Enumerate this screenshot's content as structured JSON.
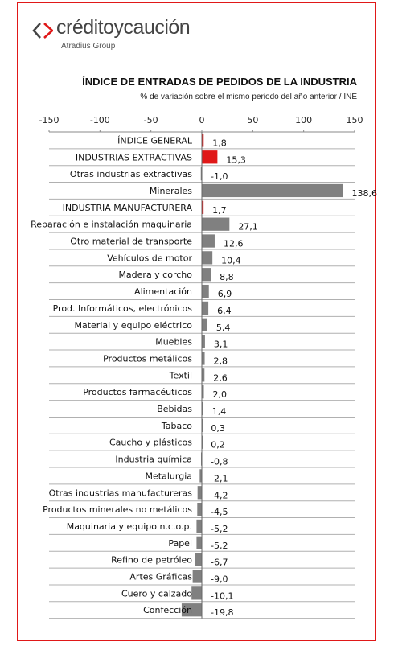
{
  "brand": {
    "name": "créditoycaución",
    "subtitle": "Atradius Group",
    "logo_color": "#e01818",
    "text_color": "#444444"
  },
  "frame_color": "#e01818",
  "chart_data": {
    "type": "bar",
    "orientation": "horizontal",
    "title": "ÍNDICE DE ENTRADAS DE PEDIDOS DE LA INDUSTRIA",
    "subtitle": "% de variación sobre el mismo periodo del año anterior / INE",
    "xlim": [
      -150,
      150
    ],
    "xticks": [
      -150,
      -100,
      -50,
      0,
      50,
      100,
      150
    ],
    "grid": "horizontal",
    "legend": "none",
    "categories": [
      "ÍNDICE GENERAL",
      "INDUSTRIAS EXTRACTIVAS",
      "Otras industrias extractivas",
      "Minerales",
      "INDUSTRIA MANUFACTURERA",
      "Reparación e instalación maquinaria",
      "Otro material de transporte",
      "Vehículos de motor",
      "Madera y corcho",
      "Alimentación",
      "Prod. Informáticos, electrónicos",
      "Material y equipo eléctrico",
      "Muebles",
      "Productos metálicos",
      "Textil",
      "Productos farmacéuticos",
      "Bebidas",
      "Tabaco",
      "Caucho y plásticos",
      "Industria química",
      "Metalurgia",
      "Otras industrias manufactureras",
      "Productos minerales no metálicos",
      "Maquinaria y equipo n.c.o.p.",
      "Papel",
      "Refino de petróleo",
      "Artes Gráficas",
      "Cuero y calzado",
      "Confección"
    ],
    "values": [
      1.8,
      15.3,
      -1.0,
      138.6,
      1.7,
      27.1,
      12.6,
      10.4,
      8.8,
      6.9,
      6.4,
      5.4,
      3.1,
      2.8,
      2.6,
      2.0,
      1.4,
      0.3,
      0.2,
      -0.8,
      -2.1,
      -4.2,
      -4.5,
      -5.2,
      -5.2,
      -6.7,
      -9.0,
      -10.1,
      -19.8
    ],
    "value_labels": [
      "1,8",
      "15,3",
      "-1,0",
      "138,6",
      "1,7",
      "27,1",
      "12,6",
      "10,4",
      "8,8",
      "6,9",
      "6,4",
      "5,4",
      "3,1",
      "2,8",
      "2,6",
      "2,0",
      "1,4",
      "0,3",
      "0,2",
      "-0,8",
      "-2,1",
      "-4,2",
      "-4,5",
      "-5,2",
      "-5,2",
      "-6,7",
      "-9,0",
      "-10,1",
      "-19,8"
    ],
    "highlight": [
      0,
      1,
      4
    ],
    "colors": {
      "highlight": "#e01818",
      "default": "#808080",
      "grid": "#b0b0b0"
    }
  }
}
